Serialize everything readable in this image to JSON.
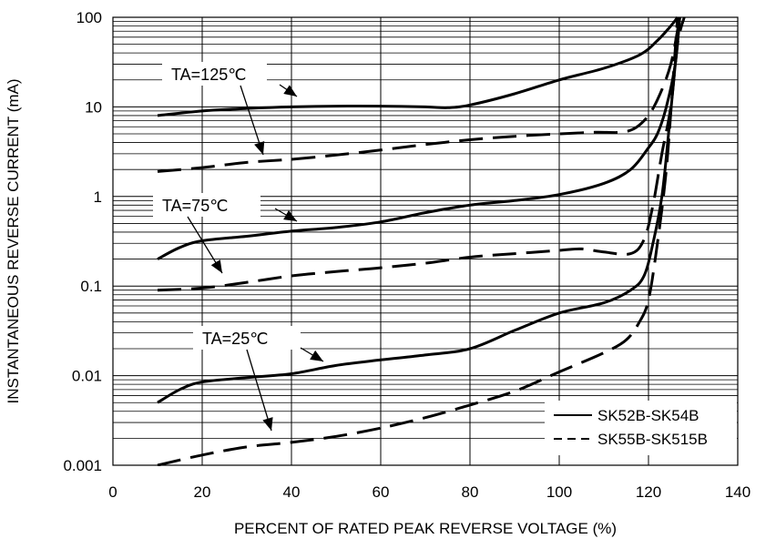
{
  "chart_data": {
    "type": "line",
    "xlabel": "PERCENT OF RATED PEAK REVERSE VOLTAGE (%)",
    "ylabel": "INSTANTANEOUS REVERSE CURRENT (mA)",
    "xlim": [
      0,
      140
    ],
    "ylim": [
      0.001,
      100
    ],
    "yscale": "log",
    "grid": true,
    "x_ticks": [
      "0",
      "20",
      "40",
      "60",
      "80",
      "100",
      "120",
      "140"
    ],
    "x_tick_values": [
      0,
      20,
      40,
      60,
      80,
      100,
      120,
      140
    ],
    "y_ticks": [
      "0.001",
      "0.01",
      "0.1",
      "1",
      "10",
      "100"
    ],
    "y_tick_values": [
      0.001,
      0.01,
      0.1,
      1,
      10,
      100
    ],
    "legend_position": "bottom-right",
    "legend": [
      {
        "label": "SK52B-SK54B",
        "style": "solid"
      },
      {
        "label": "SK55B-SK515B",
        "style": "dashed"
      }
    ],
    "annotations": [
      {
        "text": "TA=125℃"
      },
      {
        "text": "TA=75℃"
      },
      {
        "text": "TA=25℃"
      }
    ],
    "series": [
      {
        "group": "SK52B-SK54B",
        "condition": "TA=125℃",
        "style": "solid",
        "points": [
          [
            10,
            8
          ],
          [
            20,
            9
          ],
          [
            30,
            9.6
          ],
          [
            40,
            10
          ],
          [
            50,
            10.2
          ],
          [
            60,
            10.2
          ],
          [
            70,
            10
          ],
          [
            75,
            9.8
          ],
          [
            80,
            10.5
          ],
          [
            90,
            14
          ],
          [
            100,
            20
          ],
          [
            110,
            27
          ],
          [
            118,
            38
          ],
          [
            122,
            55
          ],
          [
            125,
            80
          ],
          [
            126.5,
            100
          ]
        ]
      },
      {
        "group": "SK55B-SK515B",
        "condition": "TA=125℃",
        "style": "dashed",
        "points": [
          [
            10,
            1.9
          ],
          [
            20,
            2.1
          ],
          [
            30,
            2.4
          ],
          [
            40,
            2.6
          ],
          [
            50,
            2.9
          ],
          [
            60,
            3.3
          ],
          [
            70,
            3.8
          ],
          [
            80,
            4.3
          ],
          [
            90,
            4.7
          ],
          [
            100,
            5
          ],
          [
            108,
            5.2
          ],
          [
            115,
            5.3
          ],
          [
            119,
            7
          ],
          [
            122,
            12
          ],
          [
            125,
            30
          ],
          [
            127,
            100
          ]
        ]
      },
      {
        "group": "SK52B-SK54B",
        "condition": "TA=75℃",
        "style": "solid",
        "points": [
          [
            10,
            0.2
          ],
          [
            15,
            0.27
          ],
          [
            20,
            0.32
          ],
          [
            30,
            0.36
          ],
          [
            40,
            0.41
          ],
          [
            50,
            0.45
          ],
          [
            60,
            0.52
          ],
          [
            70,
            0.66
          ],
          [
            80,
            0.8
          ],
          [
            90,
            0.9
          ],
          [
            100,
            1.05
          ],
          [
            110,
            1.4
          ],
          [
            116,
            2
          ],
          [
            120,
            3.5
          ],
          [
            122,
            5
          ],
          [
            124,
            10
          ],
          [
            126,
            30
          ],
          [
            127,
            100
          ]
        ]
      },
      {
        "group": "SK55B-SK515B",
        "condition": "TA=75℃",
        "style": "dashed",
        "points": [
          [
            10,
            0.09
          ],
          [
            20,
            0.095
          ],
          [
            30,
            0.11
          ],
          [
            40,
            0.13
          ],
          [
            50,
            0.145
          ],
          [
            60,
            0.16
          ],
          [
            70,
            0.18
          ],
          [
            80,
            0.21
          ],
          [
            90,
            0.23
          ],
          [
            100,
            0.25
          ],
          [
            105,
            0.26
          ],
          [
            110,
            0.24
          ],
          [
            116,
            0.23
          ],
          [
            119,
            0.33
          ],
          [
            121,
            0.8
          ],
          [
            123,
            3
          ],
          [
            125,
            10
          ],
          [
            126.5,
            50
          ],
          [
            128,
            100
          ]
        ]
      },
      {
        "group": "SK52B-SK54B",
        "condition": "TA=25℃",
        "style": "solid",
        "points": [
          [
            10,
            0.005
          ],
          [
            15,
            0.007
          ],
          [
            20,
            0.0085
          ],
          [
            30,
            0.0095
          ],
          [
            40,
            0.0105
          ],
          [
            50,
            0.013
          ],
          [
            60,
            0.015
          ],
          [
            70,
            0.017
          ],
          [
            80,
            0.02
          ],
          [
            90,
            0.032
          ],
          [
            100,
            0.05
          ],
          [
            110,
            0.065
          ],
          [
            116,
            0.09
          ],
          [
            119,
            0.13
          ],
          [
            121,
            0.3
          ],
          [
            123,
            1
          ],
          [
            124.5,
            5
          ],
          [
            126,
            30
          ],
          [
            127,
            100
          ]
        ]
      },
      {
        "group": "SK55B-SK515B",
        "condition": "TA=25℃",
        "style": "dashed",
        "points": [
          [
            10,
            0.001
          ],
          [
            20,
            0.0013
          ],
          [
            30,
            0.0016
          ],
          [
            40,
            0.0018
          ],
          [
            50,
            0.0021
          ],
          [
            60,
            0.0026
          ],
          [
            70,
            0.0034
          ],
          [
            80,
            0.0047
          ],
          [
            90,
            0.0067
          ],
          [
            100,
            0.011
          ],
          [
            110,
            0.018
          ],
          [
            115,
            0.025
          ],
          [
            118,
            0.04
          ],
          [
            120,
            0.07
          ],
          [
            122,
            0.3
          ],
          [
            124,
            2
          ],
          [
            125.5,
            20
          ],
          [
            126.5,
            100
          ]
        ]
      }
    ]
  }
}
